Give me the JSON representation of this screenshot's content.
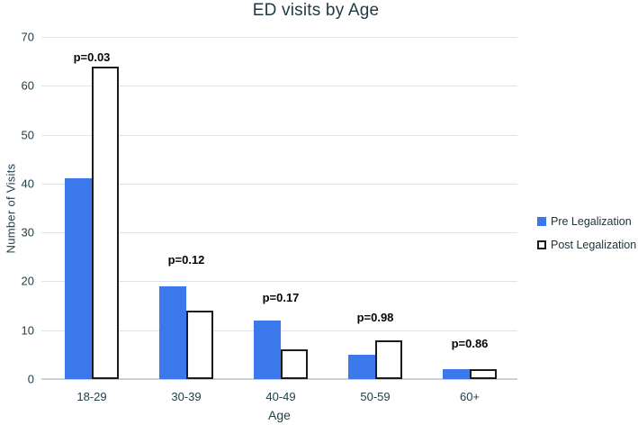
{
  "chart_data": {
    "type": "bar",
    "title": "ED visits by Age",
    "xlabel": "Age",
    "ylabel": "Number of Visits",
    "ylim": [
      0,
      70
    ],
    "yticks": [
      0,
      10,
      20,
      30,
      40,
      50,
      60,
      70
    ],
    "grid": true,
    "legend_position": "right",
    "categories": [
      "18-29",
      "30-39",
      "40-49",
      "50-59",
      "60+"
    ],
    "series": [
      {
        "name": "Pre Legalization",
        "color": "#3b78ec",
        "border_color": "#3b78ec",
        "values": [
          41,
          19,
          12,
          5,
          2
        ]
      },
      {
        "name": "Post Legalization",
        "color": "#ffffff",
        "border_color": "#1b1b1b",
        "values": [
          64,
          14,
          6,
          8,
          2
        ]
      }
    ],
    "annotations": [
      "p=0.03",
      "p=0.12",
      "p=0.17",
      "p=0.98",
      "p=0.86"
    ],
    "colors": {
      "gridline": "#dbe4e8",
      "axis_line": "#c6d2d8",
      "tick_text": "#22404a",
      "title_text": "#1e3a42",
      "annotation_text": "#050505"
    }
  }
}
